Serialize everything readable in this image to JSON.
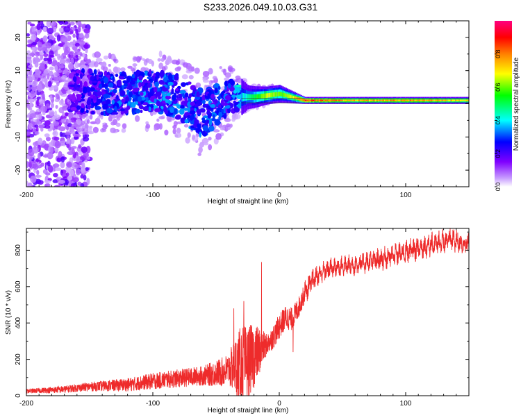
{
  "title": "S233.2026.049.10.03.G31",
  "colors": {
    "snr_line": "#ee2b2b",
    "axis": "#000000",
    "spectral_purple": "#8a2be2",
    "spectral_pale": "#d9c4f2"
  },
  "chart_data": [
    {
      "type": "heatmap",
      "name": "spectrogram",
      "xlabel": "Height of straight line (km)",
      "ylabel": "Frequency (Hz)",
      "xlim": [
        -200,
        150
      ],
      "ylim": [
        -25,
        25
      ],
      "xticks": [
        -200,
        -100,
        0,
        100
      ],
      "yticks": [
        -20,
        -10,
        0,
        10,
        20
      ],
      "colorbar": {
        "label": "Normalized spectral amplitude",
        "range": [
          0,
          1
        ],
        "ticks": [
          0.0,
          0.2,
          0.4,
          0.6,
          0.8
        ],
        "tick_labels": [
          "0.0",
          "0.2",
          "0.4",
          "0.6",
          "0.8"
        ],
        "colormap": [
          "#ffffff",
          "#8000ff",
          "#0000ff",
          "#00ffff",
          "#00ff00",
          "#ffff00",
          "#ff8000",
          "#ff0000",
          "#ff0080"
        ]
      },
      "features": {
        "scatter_region_x": [
          -200,
          -160
        ],
        "scatter_region_freq": [
          -25,
          25
        ],
        "band_center_freq": [
          [
            -170,
            4
          ],
          [
            -130,
            3
          ],
          [
            -100,
            4
          ],
          [
            -80,
            2
          ],
          [
            -60,
            -3
          ],
          [
            -40,
            2
          ],
          [
            -20,
            2
          ],
          [
            0,
            3
          ],
          [
            20,
            1
          ],
          [
            150,
            1
          ]
        ],
        "band_halfwidth": [
          [
            -170,
            7
          ],
          [
            -130,
            6
          ],
          [
            -100,
            6
          ],
          [
            -60,
            7
          ],
          [
            -40,
            5
          ],
          [
            -25,
            2
          ],
          [
            -10,
            1.5
          ],
          [
            0,
            1.5
          ],
          [
            20,
            0.6
          ],
          [
            150,
            0.6
          ]
        ],
        "band_amplitude": [
          [
            -170,
            0.2
          ],
          [
            -130,
            0.3
          ],
          [
            -100,
            0.32
          ],
          [
            -60,
            0.3
          ],
          [
            -40,
            0.3
          ],
          [
            -25,
            0.45
          ],
          [
            -10,
            0.7
          ],
          [
            0,
            0.6
          ],
          [
            10,
            0.7
          ],
          [
            20,
            0.9
          ],
          [
            60,
            0.75
          ],
          [
            100,
            0.8
          ],
          [
            150,
            0.7
          ]
        ]
      }
    },
    {
      "type": "line",
      "name": "snr",
      "xlabel": "Height of straight line (km)",
      "ylabel": "SNR (10 * v/v)",
      "xlim": [
        -200,
        150
      ],
      "ylim": [
        0,
        920
      ],
      "xticks": [
        -200,
        -100,
        0,
        100
      ],
      "yticks": [
        0,
        200,
        400,
        600,
        800
      ],
      "series": [
        {
          "name": "SNR",
          "baseline_x": [
            -200,
            -170,
            -150,
            -120,
            -100,
            -80,
            -60,
            -45,
            -35,
            -25,
            -20,
            -15,
            -10,
            -5,
            0,
            5,
            10,
            15,
            20,
            25,
            30,
            40,
            60,
            80,
            100,
            120,
            135,
            145,
            150
          ],
          "baseline_y": [
            25,
            35,
            50,
            60,
            80,
            95,
            110,
            130,
            160,
            180,
            220,
            250,
            280,
            320,
            380,
            430,
            420,
            480,
            560,
            620,
            660,
            700,
            720,
            750,
            790,
            830,
            860,
            840,
            830
          ],
          "noise_amplitude_x": [
            -200,
            -150,
            -100,
            -60,
            -40,
            -30,
            -20,
            -15,
            -10,
            0,
            15,
            30,
            60,
            100,
            150
          ],
          "noise_amplitude_y": [
            12,
            25,
            45,
            55,
            90,
            220,
            180,
            120,
            60,
            70,
            60,
            40,
            40,
            45,
            45
          ],
          "spikes": [
            {
              "x": -14,
              "y": 735
            },
            {
              "x": -28,
              "y": 520
            },
            {
              "x": -36,
              "y": 480
            },
            {
              "x": 11,
              "y": 240
            }
          ]
        }
      ]
    }
  ]
}
